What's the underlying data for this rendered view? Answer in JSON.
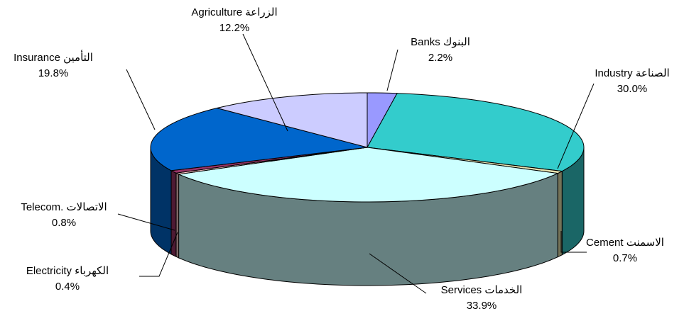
{
  "chart_data": {
    "type": "pie",
    "categories": [
      "Banks البنوك",
      "Industry الصناعة",
      "Cement الاسمنت",
      "Services الخدمات",
      "Electricity الكهرباء",
      "Telecom. الاتصالات",
      "Insurance التأمين",
      "Agriculture الزراعة"
    ],
    "values": [
      2.2,
      30.0,
      0.7,
      33.9,
      0.4,
      0.8,
      19.8,
      12.2
    ],
    "value_labels": [
      "2.2%",
      "30.0%",
      "0.7%",
      "33.9%",
      "0.4%",
      "0.8%",
      "19.8%",
      "12.2%"
    ],
    "colors": [
      "#9999ff",
      "#33cccc",
      "#e8e4b0",
      "#ccffff",
      "#ffcccc",
      "#993366",
      "#0066cc",
      "#ccccff"
    ]
  }
}
